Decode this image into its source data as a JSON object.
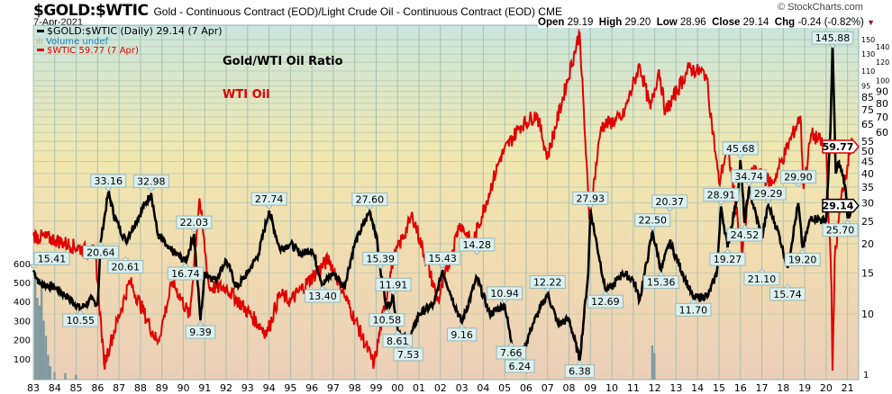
{
  "header": {
    "symbol": "$GOLD:$WTIC",
    "description": "Gold - Continuous Contract (EOD)/Light Crude Oil - Continuous Contract (EOD)  CME",
    "date": "7-Apr-2021",
    "brand": "© StockCharts.com",
    "open_label": "Open",
    "open": "29.19",
    "high_label": "High",
    "high": "29.20",
    "low_label": "Low",
    "low": "28.96",
    "close_label": "Close",
    "close": "29.14",
    "chg_label": "Chg",
    "chg": "-0.24 (-0.82%)"
  },
  "legend": {
    "ratio": "$GOLD:$WTIC (Daily) 29.14 (7 Apr)",
    "volume": "Volume undef",
    "oil": "$WTIC 59.77 (7 Apr)"
  },
  "annotations": {
    "ratio_title": "Gold/WTI Oil Ratio",
    "oil_title": "WTI Oil"
  },
  "colors": {
    "ratio": "#000000",
    "oil": "#e00000",
    "volume": "#7f9aa0",
    "label_bg": "#dcf1ef",
    "label_border": "#98b8b8"
  },
  "chart_data": {
    "type": "line",
    "title": "$GOLD:$WTIC",
    "xlabel": "",
    "ylabel": "",
    "x_ticks": [
      "83",
      "84",
      "85",
      "86",
      "87",
      "88",
      "89",
      "90",
      "91",
      "92",
      "93",
      "94",
      "95",
      "96",
      "97",
      "98",
      "99",
      "00",
      "01",
      "02",
      "03",
      "04",
      "05",
      "06",
      "07",
      "08",
      "09",
      "10",
      "11",
      "12",
      "13",
      "14",
      "15",
      "16",
      "17",
      "18",
      "19",
      "20",
      "21"
    ],
    "x_range": [
      1983,
      2021.4
    ],
    "y_scale": "log",
    "y_range": [
      5.2,
      173
    ],
    "y_ticks": [
      150,
      140,
      130,
      120,
      110,
      100,
      95,
      90,
      85,
      80,
      75,
      70,
      65,
      60,
      55,
      50,
      45,
      40,
      35,
      30,
      25,
      20,
      15,
      10
    ],
    "volume_ticks": [
      600,
      500,
      400,
      300,
      200,
      100
    ],
    "volume_bottom_label": "1",
    "grid": true,
    "series": [
      {
        "name": "$GOLD:$WTIC",
        "color": "#000000",
        "points": [
          [
            1983.0,
            15.4
          ],
          [
            1983.3,
            13.5
          ],
          [
            1984.0,
            13
          ],
          [
            1984.5,
            12
          ],
          [
            1985.2,
            10.55
          ],
          [
            1985.7,
            11.5
          ],
          [
            1986.0,
            11
          ],
          [
            1986.15,
            20.64
          ],
          [
            1986.5,
            33.16
          ],
          [
            1986.8,
            26
          ],
          [
            1987.3,
            20.61
          ],
          [
            1987.8,
            25
          ],
          [
            1988.5,
            32.98
          ],
          [
            1988.8,
            22
          ],
          [
            1989.3,
            19
          ],
          [
            1989.7,
            18
          ],
          [
            1990.1,
            16.74
          ],
          [
            1990.5,
            22.03
          ],
          [
            1990.8,
            9.39
          ],
          [
            1991.0,
            15
          ],
          [
            1991.5,
            14
          ],
          [
            1992.0,
            17
          ],
          [
            1992.5,
            13
          ],
          [
            1993.0,
            15
          ],
          [
            1993.5,
            18
          ],
          [
            1994.0,
            27.74
          ],
          [
            1994.5,
            19
          ],
          [
            1995.0,
            20
          ],
          [
            1995.5,
            18
          ],
          [
            1996.0,
            19
          ],
          [
            1996.5,
            13.4
          ],
          [
            1997.0,
            15
          ],
          [
            1997.5,
            13
          ],
          [
            1998.0,
            20
          ],
          [
            1998.7,
            27.6
          ],
          [
            1999.0,
            22
          ],
          [
            1999.2,
            15.39
          ],
          [
            1999.5,
            10.58
          ],
          [
            1999.8,
            11.91
          ],
          [
            2000.0,
            8.61
          ],
          [
            2000.5,
            7.53
          ],
          [
            2001.0,
            10
          ],
          [
            2001.7,
            11
          ],
          [
            2002.1,
            15.43
          ],
          [
            2002.5,
            12
          ],
          [
            2003.0,
            9.16
          ],
          [
            2003.7,
            14.28
          ],
          [
            2004.3,
            10
          ],
          [
            2005.0,
            10.94
          ],
          [
            2005.3,
            7.66
          ],
          [
            2005.7,
            6.24
          ],
          [
            2006.3,
            9
          ],
          [
            2007.0,
            12.22
          ],
          [
            2007.5,
            9
          ],
          [
            2008.0,
            9.5
          ],
          [
            2008.5,
            6.38
          ],
          [
            2008.9,
            15
          ],
          [
            2009.0,
            27.93
          ],
          [
            2009.7,
            12.69
          ],
          [
            2010.0,
            13
          ],
          [
            2010.5,
            15
          ],
          [
            2011.0,
            14
          ],
          [
            2011.3,
            11.5
          ],
          [
            2011.9,
            22.5
          ],
          [
            2012.3,
            15.36
          ],
          [
            2012.7,
            20.37
          ],
          [
            2013.3,
            15
          ],
          [
            2013.8,
            11.7
          ],
          [
            2014.5,
            12
          ],
          [
            2014.9,
            15
          ],
          [
            2015.1,
            28.91
          ],
          [
            2015.4,
            19.27
          ],
          [
            2015.9,
            34
          ],
          [
            2016.0,
            45.68
          ],
          [
            2016.2,
            24.52
          ],
          [
            2016.4,
            34.74
          ],
          [
            2017.0,
            21.1
          ],
          [
            2017.3,
            29.29
          ],
          [
            2017.8,
            22
          ],
          [
            2018.2,
            15.74
          ],
          [
            2018.7,
            29.9
          ],
          [
            2018.9,
            19.2
          ],
          [
            2019.3,
            26
          ],
          [
            2020.0,
            25
          ],
          [
            2020.2,
            60
          ],
          [
            2020.3,
            145.88
          ],
          [
            2020.45,
            40
          ],
          [
            2020.6,
            45
          ],
          [
            2020.9,
            35
          ],
          [
            2021.0,
            25.7
          ],
          [
            2021.27,
            29.14
          ]
        ]
      },
      {
        "name": "$WTIC",
        "color": "#e00000",
        "points": [
          [
            1983.0,
            30
          ],
          [
            1984.0,
            29
          ],
          [
            1985.9,
            26
          ],
          [
            1986.3,
            11
          ],
          [
            1986.6,
            13
          ],
          [
            1987.5,
            21
          ],
          [
            1988.8,
            13
          ],
          [
            1989.5,
            21
          ],
          [
            1990.3,
            16
          ],
          [
            1990.75,
            40
          ],
          [
            1991.2,
            20
          ],
          [
            1992.0,
            20
          ],
          [
            1993.9,
            14
          ],
          [
            1994.5,
            19
          ],
          [
            1995.0,
            18
          ],
          [
            1996.8,
            25
          ],
          [
            1997.5,
            19
          ],
          [
            1998.9,
            11
          ],
          [
            1999.8,
            25
          ],
          [
            2000.7,
            35
          ],
          [
            2001.9,
            18
          ],
          [
            2002.9,
            33
          ],
          [
            2003.5,
            28
          ],
          [
            2004.8,
            55
          ],
          [
            2005.7,
            70
          ],
          [
            2006.5,
            77
          ],
          [
            2007.0,
            55
          ],
          [
            2008.5,
            145
          ],
          [
            2008.95,
            34
          ],
          [
            2009.5,
            70
          ],
          [
            2010.5,
            75
          ],
          [
            2011.3,
            113
          ],
          [
            2011.8,
            80
          ],
          [
            2012.2,
            109
          ],
          [
            2012.5,
            78
          ],
          [
            2013.6,
            110
          ],
          [
            2014.4,
            105
          ],
          [
            2015.0,
            45
          ],
          [
            2015.4,
            60
          ],
          [
            2016.1,
            26
          ],
          [
            2016.5,
            50
          ],
          [
            2017.5,
            45
          ],
          [
            2018.8,
            76
          ],
          [
            2018.95,
            43
          ],
          [
            2019.3,
            66
          ],
          [
            2020.0,
            60
          ],
          [
            2020.25,
            20
          ],
          [
            2020.3,
            10.5
          ],
          [
            2020.4,
            25
          ],
          [
            2020.7,
            40
          ],
          [
            2021.0,
            52
          ],
          [
            2021.2,
            64
          ],
          [
            2021.27,
            59.77
          ]
        ]
      }
    ],
    "volume": [
      [
        1983.1,
        550
      ],
      [
        1983.2,
        420
      ],
      [
        1983.3,
        380
      ],
      [
        1983.4,
        480
      ],
      [
        1983.5,
        300
      ],
      [
        1983.6,
        220
      ],
      [
        1983.7,
        120
      ],
      [
        1983.8,
        60
      ],
      [
        1984.0,
        30
      ],
      [
        1984.5,
        25
      ],
      [
        1985.0,
        15
      ],
      [
        2011.9,
        170
      ],
      [
        2012.0,
        130
      ]
    ],
    "labels": [
      {
        "x": 1983.0,
        "value": "15.41",
        "type": "high"
      },
      {
        "x": 1985.2,
        "value": "10.55",
        "type": "low"
      },
      {
        "x": 1986.15,
        "value": "20.64",
        "type": "low"
      },
      {
        "x": 1986.5,
        "value": "33.16",
        "type": "high"
      },
      {
        "x": 1987.3,
        "value": "20.61",
        "type": "low"
      },
      {
        "x": 1988.5,
        "value": "32.98",
        "type": "high"
      },
      {
        "x": 1990.1,
        "value": "16.74",
        "type": "low"
      },
      {
        "x": 1990.5,
        "value": "22.03",
        "type": "high"
      },
      {
        "x": 1990.8,
        "value": "9.39",
        "type": "low"
      },
      {
        "x": 1994.0,
        "value": "27.74",
        "type": "high"
      },
      {
        "x": 1996.5,
        "value": "13.40",
        "type": "low"
      },
      {
        "x": 1998.7,
        "value": "27.60",
        "type": "high"
      },
      {
        "x": 1999.2,
        "value": "15.39",
        "type": "high"
      },
      {
        "x": 1999.5,
        "value": "10.58",
        "type": "low"
      },
      {
        "x": 1999.8,
        "value": "11.91",
        "type": "high"
      },
      {
        "x": 2000.0,
        "value": "8.61",
        "type": "low"
      },
      {
        "x": 2000.5,
        "value": "7.53",
        "type": "low"
      },
      {
        "x": 2002.1,
        "value": "15.43",
        "type": "high"
      },
      {
        "x": 2003.0,
        "value": "9.16",
        "type": "low"
      },
      {
        "x": 2003.7,
        "value": "14.28",
        "type": "high"
      },
      {
        "x": 2005.0,
        "value": "10.94",
        "type": "high"
      },
      {
        "x": 2005.3,
        "value": "7.66",
        "type": "low"
      },
      {
        "x": 2005.7,
        "value": "6.24",
        "type": "low"
      },
      {
        "x": 2007.0,
        "value": "12.22",
        "type": "high"
      },
      {
        "x": 2008.5,
        "value": "6.38",
        "type": "low"
      },
      {
        "x": 2009.0,
        "value": "27.93",
        "type": "high"
      },
      {
        "x": 2009.7,
        "value": "12.69",
        "type": "low"
      },
      {
        "x": 2011.9,
        "value": "22.50",
        "type": "high"
      },
      {
        "x": 2012.3,
        "value": "15.36",
        "type": "low"
      },
      {
        "x": 2012.7,
        "value": "20.37",
        "type": "high"
      },
      {
        "x": 2013.8,
        "value": "11.70",
        "type": "low"
      },
      {
        "x": 2015.1,
        "value": "28.91",
        "type": "high"
      },
      {
        "x": 2015.4,
        "value": "19.27",
        "type": "low"
      },
      {
        "x": 2016.0,
        "value": "45.68",
        "type": "high"
      },
      {
        "x": 2016.2,
        "value": "24.52",
        "type": "low"
      },
      {
        "x": 2016.4,
        "value": "34.74",
        "type": "high"
      },
      {
        "x": 2017.0,
        "value": "21.10",
        "type": "low"
      },
      {
        "x": 2017.3,
        "value": "29.29",
        "type": "high"
      },
      {
        "x": 2018.2,
        "value": "15.74",
        "type": "low"
      },
      {
        "x": 2018.7,
        "value": "29.90",
        "type": "high"
      },
      {
        "x": 2018.9,
        "value": "19.20",
        "type": "low"
      },
      {
        "x": 2020.3,
        "value": "145.88",
        "type": "high"
      },
      {
        "x": 2021.0,
        "value": "25.70",
        "type": "low"
      }
    ],
    "last_values": {
      "oil": "59.77",
      "ratio": "29.14"
    }
  }
}
